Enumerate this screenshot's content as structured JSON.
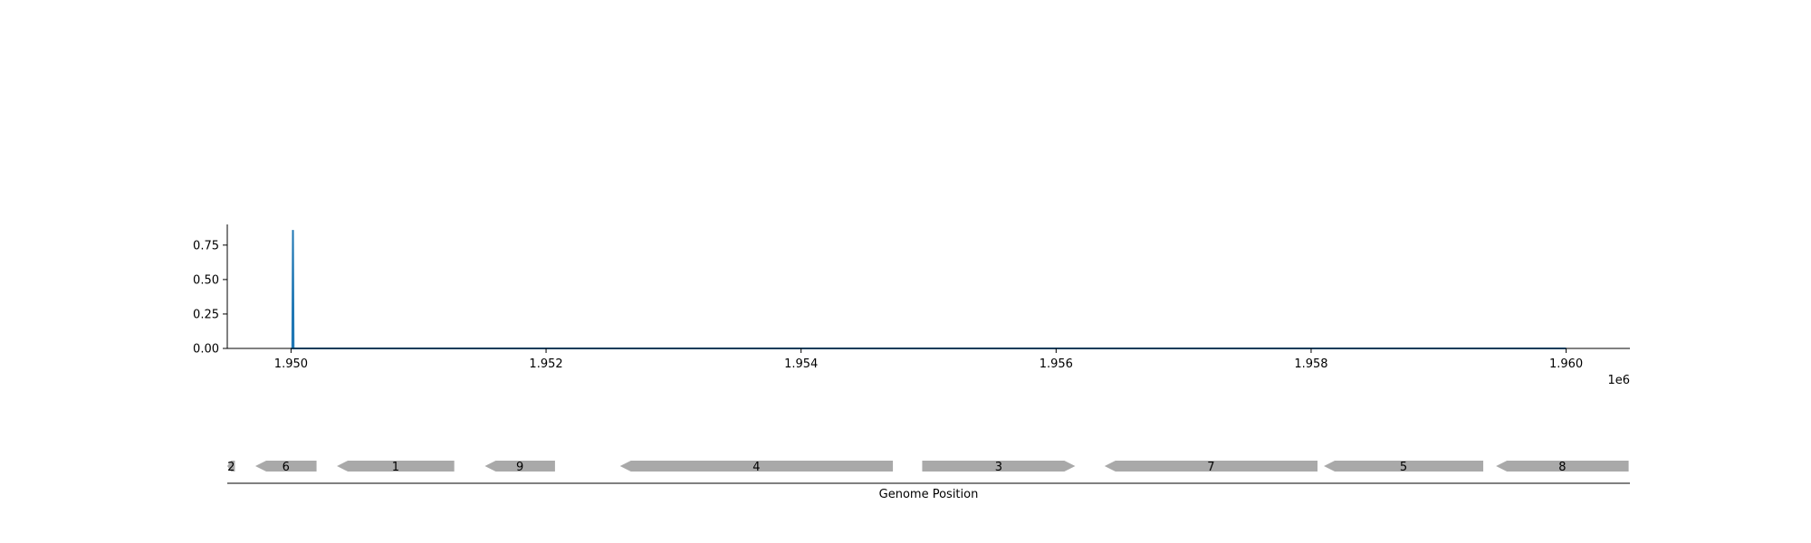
{
  "chart_data": [
    {
      "type": "line",
      "title": "",
      "xlabel": "",
      "ylabel": "",
      "x_offset_label": "1e6",
      "xlim": [
        1949500,
        1960500
      ],
      "ylim": [
        0,
        0.9
      ],
      "x_ticks": [
        1950000,
        1952000,
        1954000,
        1956000,
        1958000,
        1960000
      ],
      "x_tick_labels": [
        "1.950",
        "1.952",
        "1.954",
        "1.956",
        "1.958",
        "1.960"
      ],
      "y_ticks": [
        0,
        0.25,
        0.5,
        0.75
      ],
      "y_tick_labels": [
        "0.00",
        "0.25",
        "0.50",
        "0.75"
      ],
      "grid": false,
      "color": "#1f77b4",
      "series": [
        {
          "x": [
            1950000,
            1950010,
            1950015,
            1950020,
            1950030,
            1960000
          ],
          "y": [
            0,
            0,
            0.86,
            0,
            0,
            0
          ]
        }
      ]
    },
    {
      "type": "gene-track",
      "xlabel": "Genome Position",
      "xlim": [
        1949500,
        1960500
      ],
      "color": "#a9a9a9",
      "features": [
        {
          "label": "2",
          "start": 1949500,
          "end": 1949560,
          "strand": "-"
        },
        {
          "label": "6",
          "start": 1949720,
          "end": 1950200,
          "strand": "-"
        },
        {
          "label": "1",
          "start": 1950360,
          "end": 1951280,
          "strand": "-"
        },
        {
          "label": "9",
          "start": 1951520,
          "end": 1952070,
          "strand": "-"
        },
        {
          "label": "4",
          "start": 1952580,
          "end": 1954720,
          "strand": "-"
        },
        {
          "label": "3",
          "start": 1954950,
          "end": 1956150,
          "strand": "+"
        },
        {
          "label": "7",
          "start": 1956380,
          "end": 1958050,
          "strand": "-"
        },
        {
          "label": "5",
          "start": 1958100,
          "end": 1959350,
          "strand": "-"
        },
        {
          "label": "8",
          "start": 1959450,
          "end": 1960490,
          "strand": "-"
        }
      ]
    }
  ]
}
